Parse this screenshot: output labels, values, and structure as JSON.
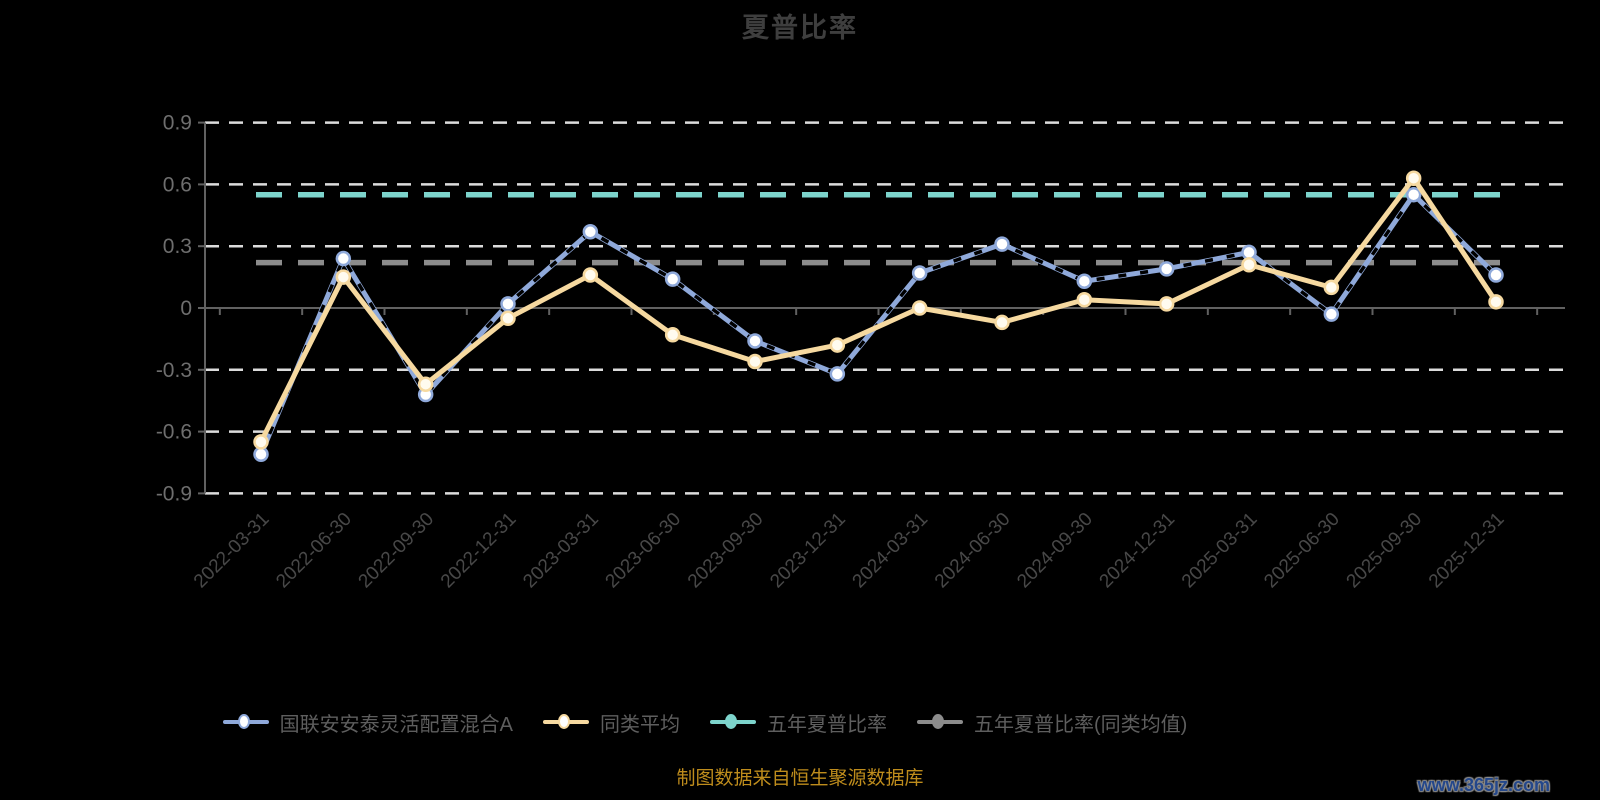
{
  "title": "夏普比率",
  "source_note": "制图数据来自恒生聚源数据库",
  "watermark": "www.365jz.com",
  "colors": {
    "background": "#000000",
    "title_text": "#3E3E3E",
    "grid_line": "#DCDCDC",
    "axis_line": "#616161",
    "y_label": "#6E6E6E",
    "x_label": "#484848",
    "legend_text": "#5E5E5E",
    "source_note_text": "#BE8C1C",
    "watermark_text": "#24478A"
  },
  "chart_data": {
    "type": "line",
    "title": "夏普比率",
    "xlabel": "",
    "ylabel": "",
    "ylim": [
      -0.9,
      0.9
    ],
    "yticks": [
      0.9,
      0.6,
      0.3,
      0,
      -0.3,
      -0.6,
      -0.9
    ],
    "grid": "horizontal white dashed lines, solid x-axis on zero",
    "legend_position": "bottom",
    "categories": [
      "2022-03-31",
      "2022-06-30",
      "2022-09-30",
      "2022-12-31",
      "2023-03-31",
      "2023-06-30",
      "2023-09-30",
      "2023-12-31",
      "2024-03-31",
      "2024-06-30",
      "2024-09-30",
      "2024-12-31",
      "2025-03-31",
      "2025-06-30",
      "2025-09-30",
      "2025-12-31"
    ],
    "series": [
      {
        "name": "国联安安泰灵活配置混合A",
        "type": "line",
        "color": "#8FA9DA",
        "line_style": "solid",
        "marker": "hollow-circle",
        "overlay": "black dashed strokes along line",
        "values": [
          -0.71,
          0.24,
          -0.42,
          0.02,
          0.37,
          0.14,
          -0.16,
          -0.32,
          0.17,
          0.31,
          0.13,
          0.19,
          0.27,
          -0.03,
          0.55,
          0.16
        ]
      },
      {
        "name": "同类平均",
        "type": "line",
        "color": "#F6D9A0",
        "line_style": "solid",
        "marker": "hollow-circle",
        "values": [
          -0.65,
          0.15,
          -0.37,
          -0.05,
          0.16,
          -0.13,
          -0.26,
          -0.18,
          0.0,
          -0.07,
          0.04,
          0.02,
          0.21,
          0.1,
          0.63,
          0.03
        ]
      },
      {
        "name": "五年夏普比率",
        "type": "horizontal-reference-line",
        "color": "#7DD4CC",
        "line_style": "dashed",
        "marker": "filled-circle",
        "constant": 0.55
      },
      {
        "name": "五年夏普比率(同类均值)",
        "type": "horizontal-reference-line",
        "color": "#8C8C8C",
        "line_style": "dashed",
        "marker": "filled-circle",
        "constant": 0.22
      }
    ]
  }
}
